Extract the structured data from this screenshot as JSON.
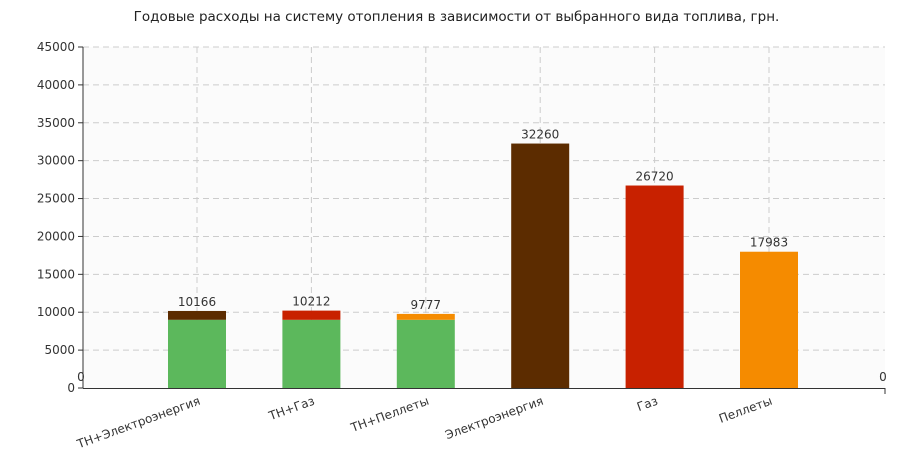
{
  "chart_data": {
    "type": "bar",
    "stacked": true,
    "title": "Годовые расходы на систему отопления в зависимости от выбранного вида топлива, грн.",
    "xlabel": "",
    "ylabel": "",
    "ylim": [
      0,
      45000
    ],
    "yticks": [
      0,
      5000,
      10000,
      15000,
      20000,
      25000,
      30000,
      35000,
      40000,
      45000
    ],
    "grid": true,
    "categories": [
      "ТН+Электроэнергия",
      "ТН+Газ",
      "ТН+Пеллеты",
      "Электроэнергия",
      "Газ",
      "Пеллеты"
    ],
    "series": [
      {
        "color": "#5cb85c",
        "values": [
          9000,
          9000,
          9000,
          0,
          0,
          0
        ]
      },
      {
        "colors": [
          "#5c2c00",
          "#c82100",
          "#f58b00",
          "#5c2c00",
          "#c82100",
          "#f58b00"
        ],
        "values": [
          1166,
          1212,
          777,
          32260,
          26720,
          17983
        ]
      }
    ],
    "totals": [
      "10166",
      "10212",
      "9777",
      "32260",
      "26720",
      "17983"
    ],
    "edge_labels": {
      "left": "0",
      "right": "0"
    }
  }
}
